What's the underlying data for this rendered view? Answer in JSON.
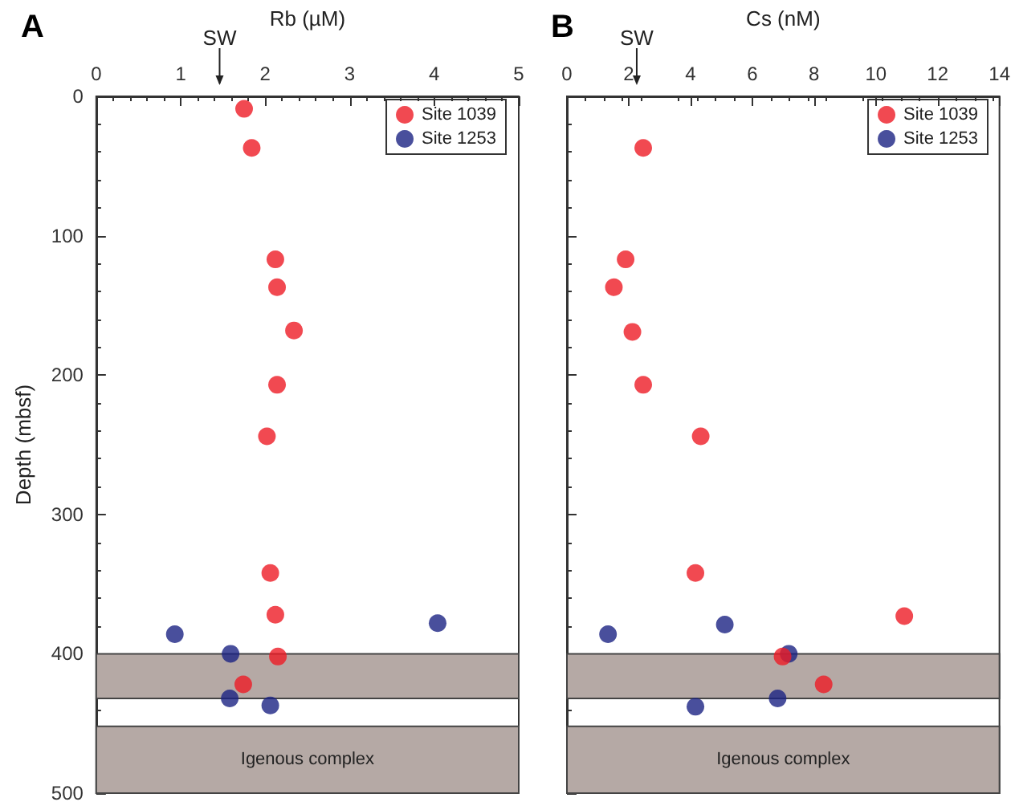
{
  "chart_data": [
    {
      "type": "scatter",
      "title": "A",
      "xlabel": "Rb (µM)",
      "ylabel": "Depth (mbsf)",
      "xlim": [
        0,
        5
      ],
      "xticks": [
        0,
        1,
        2,
        3,
        4,
        5
      ],
      "ylim": [
        500,
        0
      ],
      "yticks": [
        0,
        100,
        200,
        300,
        400,
        500
      ],
      "grid": false,
      "legend": "top right",
      "marker": "circle",
      "series": [
        {
          "name": "Site 1039",
          "color": "#ee1c25",
          "x": [
            1.75,
            1.84,
            2.12,
            2.14,
            2.34,
            2.14,
            2.02,
            2.06,
            2.12,
            2.15,
            1.74
          ],
          "values": [
            9,
            37,
            117,
            137,
            168,
            207,
            244,
            342,
            372,
            402,
            422
          ]
        },
        {
          "name": "Site 1253",
          "color": "#1c2383",
          "x": [
            0.93,
            1.59,
            1.58,
            2.06,
            4.04
          ],
          "values": [
            386,
            400,
            432,
            437,
            378
          ]
        }
      ],
      "bands": [
        {
          "axis": "y",
          "from": 400,
          "to": 432,
          "label": null,
          "color": "#b5a9a5"
        },
        {
          "axis": "y",
          "from": 452,
          "to": 500,
          "label": "Igenous complex",
          "color": "#b5a9a5"
        }
      ],
      "ref_lines": [
        {
          "axis": "x",
          "value": 1.46,
          "label": "SW"
        }
      ]
    },
    {
      "type": "scatter",
      "title": "B",
      "xlabel": "Cs (nM)",
      "xlim": [
        0,
        14
      ],
      "xticks": [
        0,
        2,
        4,
        6,
        8,
        10,
        12,
        14
      ],
      "ylim": [
        500,
        0
      ],
      "yticks": [
        0,
        100,
        200,
        300,
        400,
        500
      ],
      "tick_labels": "x",
      "grid": false,
      "legend": "top right",
      "marker": "circle",
      "series": [
        {
          "name": "Site 1039",
          "color": "#ee1c25",
          "x": [
            2.47,
            1.9,
            1.52,
            2.12,
            2.47,
            4.33,
            4.16,
            10.92,
            6.98,
            8.31
          ],
          "values": [
            37,
            117,
            137,
            169,
            207,
            244,
            342,
            373,
            402,
            422
          ]
        },
        {
          "name": "Site 1253",
          "color": "#1c2383",
          "x": [
            1.33,
            5.11,
            7.18,
            6.82,
            4.16
          ],
          "values": [
            386,
            379,
            400,
            432,
            438
          ]
        }
      ],
      "bands": [
        {
          "axis": "y",
          "from": 400,
          "to": 432,
          "label": null,
          "color": "#b5a9a5"
        },
        {
          "axis": "y",
          "from": 452,
          "to": 500,
          "label": "Igenous complex",
          "color": "#b5a9a5"
        }
      ],
      "ref_lines": [
        {
          "axis": "x",
          "value": 2.26,
          "label": "SW"
        }
      ]
    }
  ]
}
